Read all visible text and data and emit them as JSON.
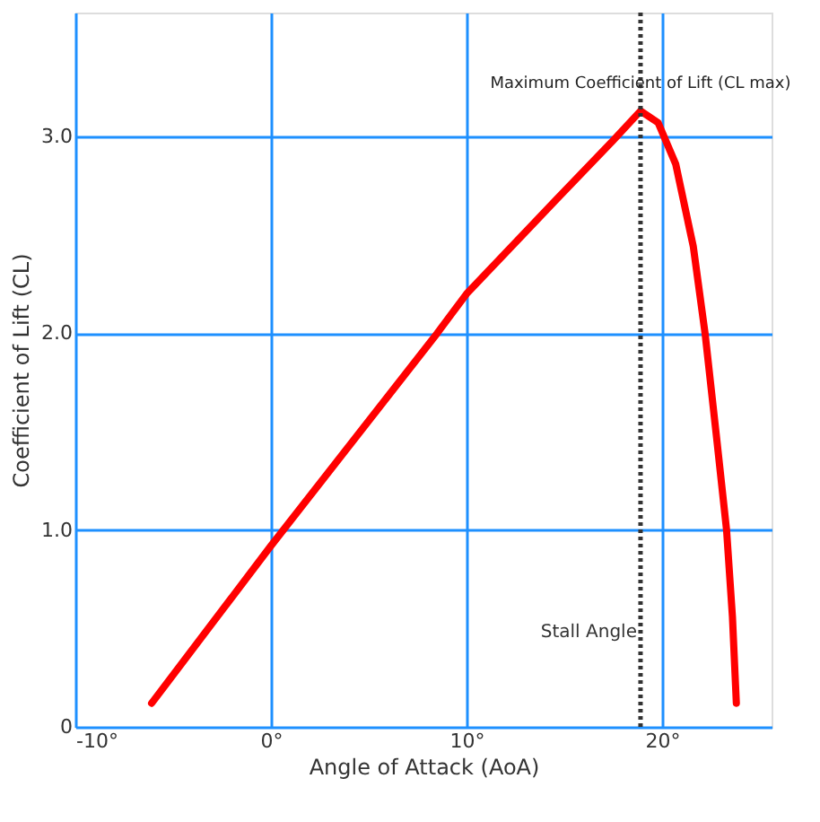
{
  "chart_data": {
    "type": "line",
    "xlabel": "Angle of Attack (AoA)",
    "ylabel": "Coefficient of Lift  (CL)",
    "x": [
      -6.1,
      0,
      8.5,
      10,
      14.5,
      17.5,
      18.9,
      19.8,
      20.7,
      21.6,
      22.2,
      22.8,
      23.3,
      23.6,
      23.8
    ],
    "series": [
      {
        "color": "#ff0000",
        "values": [
          0.12,
          0.92,
          2.0,
          2.2,
          2.67,
          2.98,
          3.13,
          3.07,
          2.86,
          2.44,
          2.0,
          1.46,
          1.0,
          0.56,
          0.12
        ]
      }
    ],
    "xlim": [
      -10,
      25.6
    ],
    "ylim": [
      0,
      3.63
    ],
    "xticks": [
      {
        "value": -10,
        "label": "-10°"
      },
      {
        "value": 0,
        "label": "0°"
      },
      {
        "value": 10,
        "label": "10°"
      },
      {
        "value": 20,
        "label": "20°"
      }
    ],
    "yticks": [
      0,
      {
        "value": 1,
        "label": "1.0"
      },
      {
        "value": 2,
        "label": "2.0"
      },
      {
        "value": 3,
        "label": "3.0"
      }
    ],
    "grid": true,
    "line_style": "solid",
    "marker": "none",
    "ref_lines": [
      {
        "axis": "x",
        "value": 18.9,
        "label": "Stall Angle",
        "color": "#333333",
        "line_style": "dotted"
      }
    ],
    "annotations": [
      {
        "text": "Maximum Coefficient of Lift (CL max)",
        "x": 18.9,
        "y": 3.13
      }
    ]
  }
}
